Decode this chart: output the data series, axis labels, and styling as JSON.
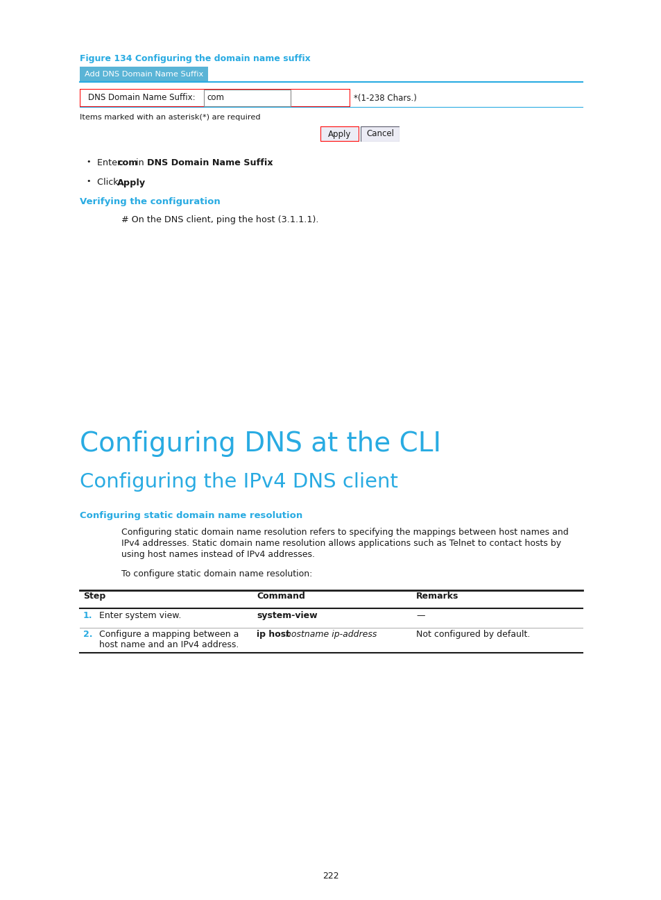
{
  "bg_color": "#ffffff",
  "page_number": "222",
  "cyan_color": "#29abe2",
  "figure_caption": "Figure 134 Configuring the domain name suffix",
  "tab_label": "Add DNS Domain Name Suffix",
  "form_label": "DNS Domain Name Suffix:",
  "form_value": "com",
  "form_hint": "*(1-238 Chars.)",
  "form_note": "Items marked with an asterisk(*) are required",
  "btn_apply": "Apply",
  "btn_cancel": "Cancel",
  "section_verify": "Verifying the configuration",
  "verify_text": "# On the DNS client, ping the host (3.1.1.1).",
  "h1_title": "Configuring DNS at the CLI",
  "h2_title": "Configuring the IPv4 DNS client",
  "h3_title": "Configuring static domain name resolution",
  "body_text1_line1": "Configuring static domain name resolution refers to specifying the mappings between host names and",
  "body_text1_line2": "IPv4 addresses. Static domain name resolution allows applications such as Telnet to contact hosts by",
  "body_text1_line3": "using host names instead of IPv4 addresses.",
  "body_text2": "To configure static domain name resolution:",
  "table_headers": [
    "Step",
    "Command",
    "Remarks"
  ],
  "row1_step": "Enter system view.",
  "row1_cmd": "system-view",
  "row1_rem": "—",
  "row2_step1": "Configure a mapping between a",
  "row2_step2": "host name and an IPv4 address.",
  "row2_cmd_bold": "ip host ",
  "row2_cmd_italic": "hostname ip-address",
  "row2_rem": "Not configured by default."
}
